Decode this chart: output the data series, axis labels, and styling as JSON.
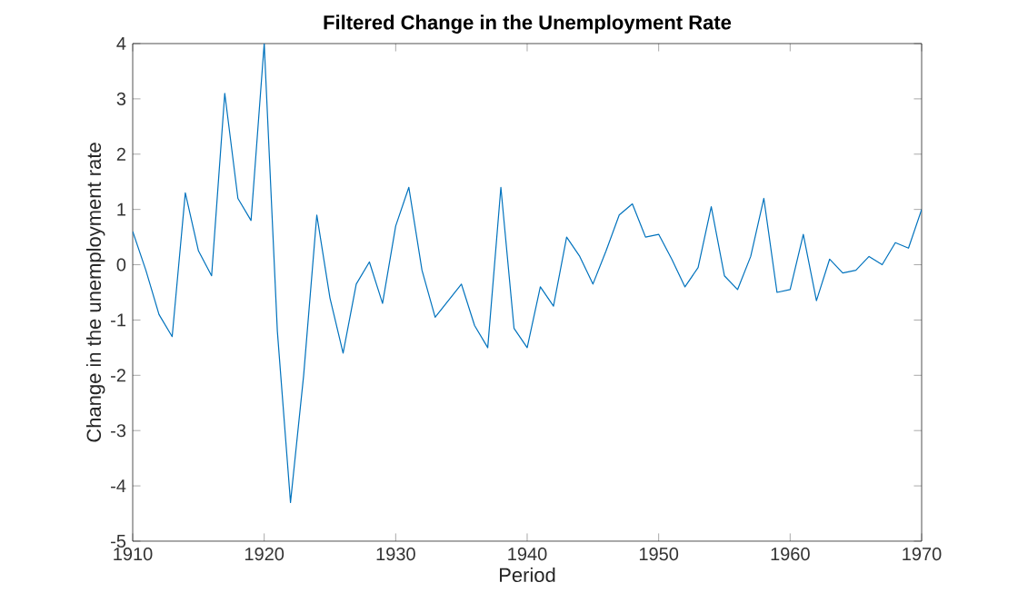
{
  "chart_data": {
    "type": "line",
    "title": "Filtered Change in the Unemployment Rate",
    "xlabel": "Period",
    "ylabel": "Change in the unemployment rate",
    "x": [
      1910,
      1911,
      1912,
      1913,
      1914,
      1915,
      1916,
      1917,
      1918,
      1919,
      1920,
      1921,
      1922,
      1923,
      1924,
      1925,
      1926,
      1927,
      1928,
      1929,
      1930,
      1931,
      1932,
      1933,
      1934,
      1935,
      1936,
      1937,
      1938,
      1939,
      1940,
      1941,
      1942,
      1943,
      1944,
      1945,
      1946,
      1947,
      1948,
      1949,
      1950,
      1951,
      1952,
      1953,
      1954,
      1955,
      1956,
      1957,
      1958,
      1959,
      1960,
      1961,
      1962,
      1963,
      1964,
      1965,
      1966,
      1967,
      1968,
      1969,
      1970
    ],
    "series": [
      {
        "color": "#0072bd",
        "values": [
          0.6,
          -0.1,
          -0.9,
          -1.3,
          1.3,
          0.25,
          -0.2,
          3.1,
          1.2,
          0.8,
          4.0,
          -1.2,
          -4.3,
          -2.0,
          0.9,
          -0.6,
          -1.6,
          -0.35,
          0.05,
          -0.7,
          0.7,
          1.4,
          -0.1,
          -0.95,
          -0.65,
          -0.35,
          -1.1,
          -1.5,
          1.4,
          -1.15,
          -1.5,
          -0.4,
          -0.75,
          0.5,
          0.15,
          -0.35,
          0.25,
          0.9,
          1.1,
          0.5,
          0.55,
          0.1,
          -0.4,
          -0.05,
          1.05,
          -0.2,
          -0.45,
          0.15,
          1.2,
          -0.5,
          -0.45,
          0.55,
          -0.65,
          0.1,
          -0.15,
          -0.1,
          0.15,
          0.0,
          0.4,
          0.3,
          1.0
        ]
      }
    ],
    "xlim": [
      1910,
      1970
    ],
    "ylim": [
      -5,
      4
    ],
    "xticks": [
      1910,
      1920,
      1930,
      1940,
      1950,
      1960,
      1970
    ],
    "yticks": [
      -5,
      -4,
      -3,
      -2,
      -1,
      0,
      1,
      2,
      3,
      4
    ],
    "marker": "none",
    "line_style": "solid"
  }
}
